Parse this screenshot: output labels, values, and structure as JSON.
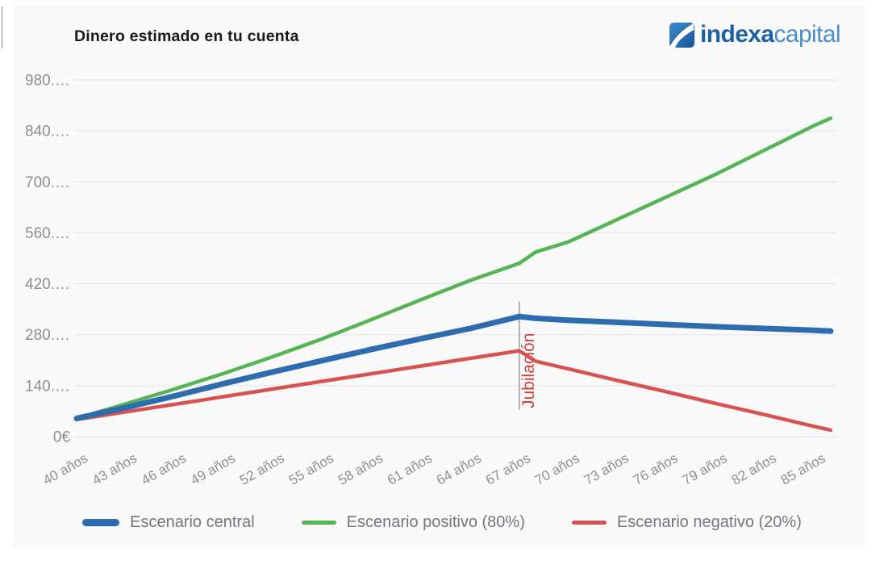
{
  "header": {
    "title": "Dinero estimado en tu cuenta"
  },
  "logo": {
    "brand_bold": "indexa",
    "brand_light": "capital"
  },
  "chart_data": {
    "type": "line",
    "title": "Dinero estimado en tu cuenta",
    "xlabel": "",
    "ylabel": "",
    "grid": "horizontal",
    "legend_position": "bottom",
    "x_range": [
      40,
      86
    ],
    "ylim": [
      0,
      980000
    ],
    "categories": [
      "40 años",
      "43 años",
      "46 años",
      "49 años",
      "52 años",
      "55 años",
      "58 años",
      "61 años",
      "64 años",
      "67 años",
      "70 años",
      "73 años",
      "76 años",
      "79 años",
      "82 años",
      "85 años"
    ],
    "category_ages": [
      40,
      43,
      46,
      49,
      52,
      55,
      58,
      61,
      64,
      67,
      70,
      73,
      76,
      79,
      82,
      85
    ],
    "y_ticks": [
      {
        "value": 0,
        "label": "0€"
      },
      {
        "value": 140000,
        "label": "140.…"
      },
      {
        "value": 280000,
        "label": "280.…"
      },
      {
        "value": 420000,
        "label": "420.…"
      },
      {
        "value": 560000,
        "label": "560.…"
      },
      {
        "value": 700000,
        "label": "700.…"
      },
      {
        "value": 840000,
        "label": "840.…"
      },
      {
        "value": 980000,
        "label": "980.…"
      }
    ],
    "retirement_marker": {
      "age": 67,
      "label": "Jubilación",
      "color": "#ca433e",
      "line_color": "#9b9b9b",
      "line_value_top": 372000,
      "line_value_bottom": 74000
    },
    "series": [
      {
        "name": "Escenario central",
        "color": "#2e6cb0",
        "line_width": 7,
        "x": [
          40,
          43,
          46,
          49,
          52,
          55,
          58,
          61,
          64,
          67,
          68,
          70,
          73,
          76,
          79,
          82,
          85,
          86
        ],
        "values": [
          50000,
          80000,
          112000,
          146000,
          178000,
          209000,
          240000,
          269000,
          297000,
          330000,
          325000,
          320000,
          314000,
          308000,
          302000,
          297000,
          292000,
          290000
        ]
      },
      {
        "name": "Escenario positivo (80%)",
        "color": "#55b555",
        "line_width": 4.5,
        "x": [
          40,
          43,
          46,
          49,
          52,
          55,
          58,
          61,
          64,
          67,
          68,
          70,
          73,
          76,
          79,
          82,
          85,
          86
        ],
        "values": [
          50000,
          90000,
          131000,
          174000,
          220000,
          269000,
          322000,
          376000,
          429000,
          476000,
          507000,
          535000,
          597000,
          659000,
          721000,
          788000,
          855000,
          875000
        ]
      },
      {
        "name": "Escenario negativo (20%)",
        "color": "#d8534f",
        "line_width": 4.5,
        "x": [
          40,
          43,
          46,
          49,
          52,
          55,
          58,
          61,
          64,
          67,
          68,
          70,
          73,
          76,
          79,
          82,
          85,
          86
        ],
        "values": [
          47000,
          68000,
          89000,
          110000,
          131000,
          152000,
          173000,
          194000,
          215000,
          236000,
          207000,
          186000,
          154000,
          123000,
          91000,
          60000,
          28000,
          18000
        ]
      }
    ]
  }
}
